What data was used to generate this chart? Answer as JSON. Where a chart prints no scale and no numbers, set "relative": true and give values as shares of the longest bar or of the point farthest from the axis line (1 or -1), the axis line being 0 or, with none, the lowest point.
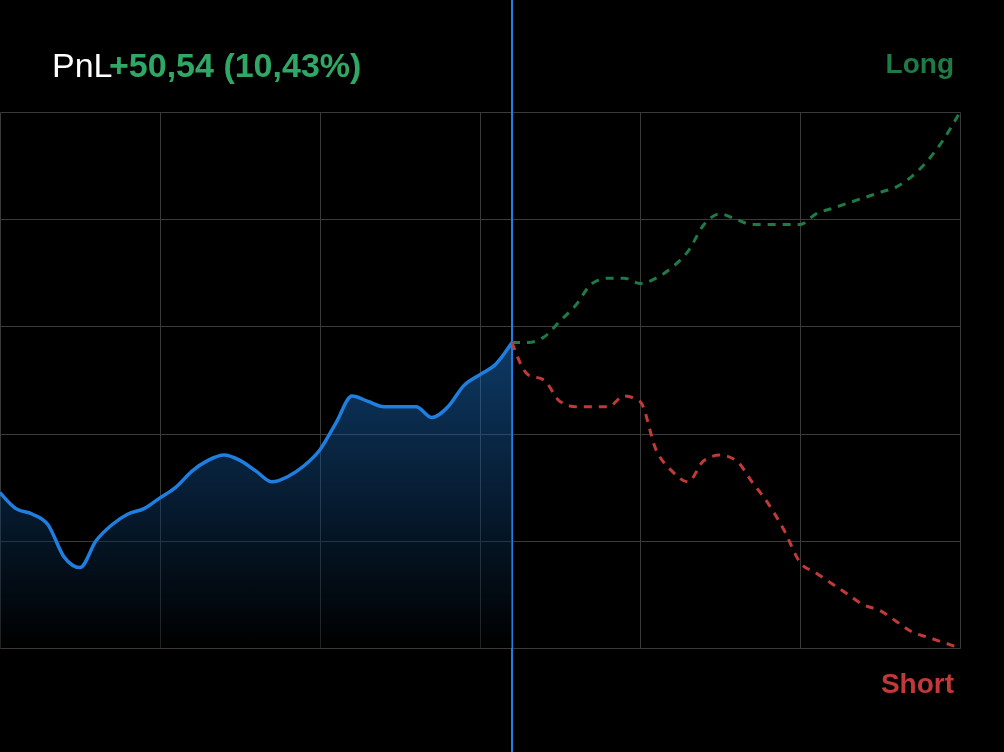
{
  "chart_data": {
    "type": "line",
    "relative": true,
    "grid": true,
    "categories": [
      null,
      null,
      null,
      null,
      null,
      null,
      null,
      null,
      null,
      null,
      null,
      null,
      null,
      null,
      null,
      null,
      null,
      null,
      null,
      null,
      null,
      null,
      null,
      null,
      null,
      null,
      null,
      null,
      null,
      null,
      null,
      null,
      null,
      null,
      null,
      null,
      null,
      null,
      null,
      null,
      null,
      null,
      null,
      null,
      null,
      null,
      null,
      null,
      null,
      null,
      null,
      null,
      null,
      null,
      null,
      null,
      null,
      null,
      null,
      null,
      null
    ],
    "series": [
      {
        "type": "area",
        "color": "#1e7fe0",
        "values": [
          0.29,
          0.26,
          0.25,
          0.23,
          0.17,
          0.15,
          0.2,
          0.23,
          0.25,
          0.26,
          0.28,
          0.3,
          0.33,
          0.35,
          0.36,
          0.35,
          0.33,
          0.31,
          0.32,
          0.34,
          0.37,
          0.42,
          0.47,
          0.46,
          0.45,
          0.45,
          0.45,
          0.43,
          0.45,
          0.49,
          0.51,
          0.53,
          0.57,
          null,
          null,
          null,
          null,
          null,
          null,
          null,
          null,
          null,
          null,
          null,
          null,
          null,
          null,
          null,
          null,
          null,
          null,
          null,
          null,
          null,
          null,
          null,
          null,
          null,
          null,
          null,
          null
        ]
      },
      {
        "name": "Long",
        "color": "#1f7a45",
        "line_style": "dashed",
        "values": [
          null,
          null,
          null,
          null,
          null,
          null,
          null,
          null,
          null,
          null,
          null,
          null,
          null,
          null,
          null,
          null,
          null,
          null,
          null,
          null,
          null,
          null,
          null,
          null,
          null,
          null,
          null,
          null,
          null,
          null,
          null,
          null,
          0.57,
          0.57,
          0.58,
          0.61,
          0.64,
          0.68,
          0.69,
          0.69,
          0.68,
          0.69,
          0.71,
          0.74,
          0.79,
          0.81,
          0.8,
          0.79,
          0.79,
          0.79,
          0.79,
          0.81,
          0.82,
          0.83,
          0.84,
          0.85,
          0.86,
          0.88,
          0.91,
          0.95,
          1
        ]
      },
      {
        "name": "Short",
        "color": "#c03a3a",
        "line_style": "dashed",
        "values": [
          null,
          null,
          null,
          null,
          null,
          null,
          null,
          null,
          null,
          null,
          null,
          null,
          null,
          null,
          null,
          null,
          null,
          null,
          null,
          null,
          null,
          null,
          null,
          null,
          null,
          null,
          null,
          null,
          null,
          null,
          null,
          null,
          0.57,
          0.51,
          0.5,
          0.46,
          0.45,
          0.45,
          0.45,
          0.47,
          0.46,
          0.37,
          0.33,
          0.31,
          0.35,
          0.36,
          0.35,
          0.31,
          0.27,
          0.22,
          0.16,
          0.14,
          0.12,
          0.1,
          0.08,
          0.07,
          0.05,
          0.03,
          0.02,
          0.01,
          0
        ]
      }
    ],
    "annotations": [
      "PnL",
      "+50,54 (10,43%)"
    ]
  }
}
